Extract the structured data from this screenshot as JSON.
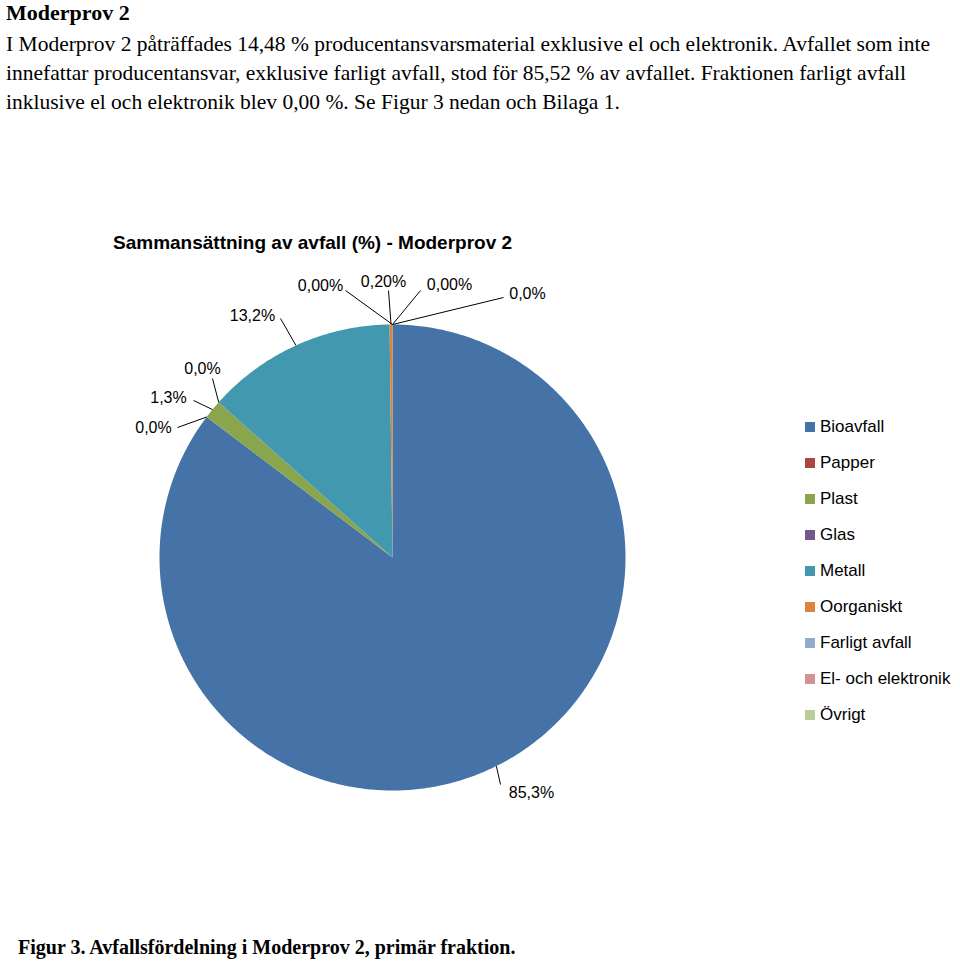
{
  "heading": "Moderprov 2",
  "paragraph": "I Moderprov 2 påträffades 14,48 % producentansvarsmaterial exklusive el och elektronik. Avfallet som inte innefattar producentansvar, exklusive farligt avfall, stod för 85,52 % av avfallet. Fraktionen farligt avfall inklusive el och elektronik blev 0,00 %. Se Figur 3 nedan och Bilaga 1.",
  "caption": "Figur 3. Avfallsfördelning i Moderprov 2, primär fraktion.",
  "chart_data": {
    "type": "pie",
    "title": "Sammansättning av avfall (%) - Moderprov 2",
    "categories": [
      "Bioavfall",
      "Papper",
      "Plast",
      "Glas",
      "Metall",
      "Oorganiskt",
      "Farligt avfall",
      "El- och elektronik",
      "Övrigt"
    ],
    "values": [
      85.3,
      0.0,
      1.3,
      0.0,
      13.2,
      0.2,
      0.0,
      0.0,
      0.0
    ],
    "value_labels": [
      "85,3%",
      "0,0%",
      "1,3%",
      "0,0%",
      "13,2%",
      "0,20%",
      "0,00%",
      "0,00%",
      "0,0%"
    ],
    "colors": [
      "#4572A7",
      "#AA4643",
      "#89A54E",
      "#71588F",
      "#4198AF",
      "#DB843D",
      "#93A9CF",
      "#D19392",
      "#B9CD96"
    ],
    "data_labels": true,
    "legend": "right"
  }
}
